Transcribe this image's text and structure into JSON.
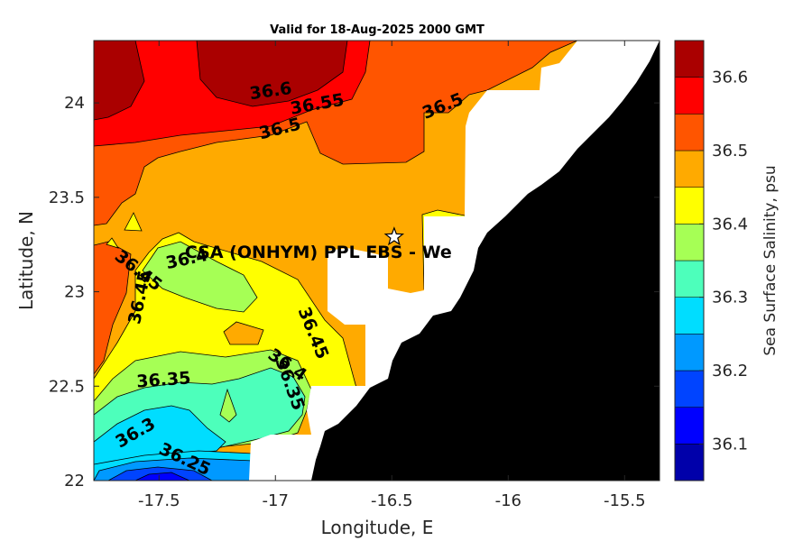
{
  "chart_data": {
    "type": "contour-map",
    "title": "Valid for 18-Aug-2025 2000 GMT",
    "xlabel": "Longitude, E",
    "ylabel": "Latitude, N",
    "xlim": [
      -17.78,
      -15.35
    ],
    "ylim": [
      22.0,
      24.33
    ],
    "xticks": [
      -17.5,
      -17,
      -16.5,
      -16,
      -15.5
    ],
    "yticks": [
      22,
      22.5,
      23,
      23.5,
      24
    ],
    "xtick_labels": [
      "-17.5",
      "-17",
      "-16.5",
      "-16",
      "-15.5"
    ],
    "ytick_labels": [
      "22",
      "22.5",
      "23",
      "23.5",
      "24"
    ],
    "colorbar": {
      "label": "Sea Surface Salinity, psu",
      "range": [
        36.05,
        36.65
      ],
      "levels": [
        36.05,
        36.1,
        36.15,
        36.2,
        36.25,
        36.3,
        36.35,
        36.4,
        36.45,
        36.5,
        36.55,
        36.6,
        36.65
      ],
      "colors": [
        "#0000aa",
        "#0000ff",
        "#0044ff",
        "#0099ff",
        "#00ddff",
        "#4dffbb",
        "#a6ff55",
        "#ffff00",
        "#ffaa00",
        "#ff5500",
        "#ff0000",
        "#aa0000"
      ],
      "ticks": [
        36.1,
        36.2,
        36.3,
        36.4,
        36.5,
        36.6
      ],
      "tick_labels": [
        "36.1",
        "36.2",
        "36.3",
        "36.4",
        "36.5",
        "36.6"
      ]
    },
    "contour_labels": [
      {
        "text": "36.6",
        "lon": -17.02,
        "lat": 24.06
      },
      {
        "text": "36.55",
        "lon": -16.82,
        "lat": 23.99
      },
      {
        "text": "36.5",
        "lon": -16.98,
        "lat": 23.86
      },
      {
        "text": "36.5",
        "lon": -16.28,
        "lat": 23.98
      },
      {
        "text": "36.4",
        "lon": -17.38,
        "lat": 23.17
      },
      {
        "text": "36.45",
        "lon": -17.59,
        "lat": 23.11
      },
      {
        "text": "36.45",
        "lon": -17.58,
        "lat": 22.97
      },
      {
        "text": "36.45",
        "lon": -16.84,
        "lat": 22.78
      },
      {
        "text": "36.4",
        "lon": -16.95,
        "lat": 22.61
      },
      {
        "text": "36.35",
        "lon": -16.94,
        "lat": 22.51
      },
      {
        "text": "36.35",
        "lon": -17.48,
        "lat": 22.53
      },
      {
        "text": "36.3",
        "lon": -17.6,
        "lat": 22.25
      },
      {
        "text": "36.25",
        "lon": -17.39,
        "lat": 22.11
      }
    ],
    "site": {
      "label": "CSA (ONHYM) PPL EBS  - We",
      "lon": -16.49,
      "lat": 23.29
    }
  }
}
